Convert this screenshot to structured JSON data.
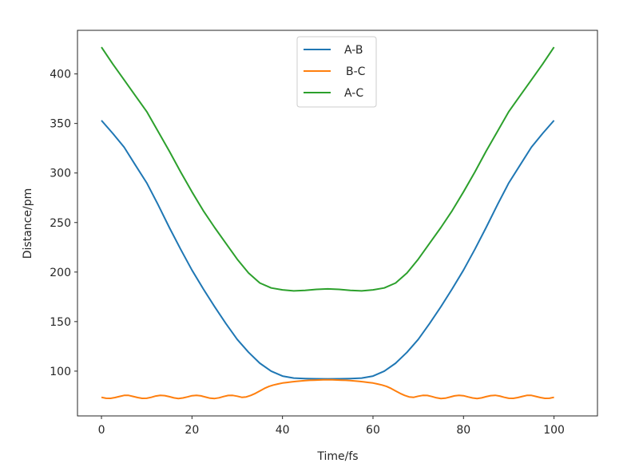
{
  "chart_data": {
    "type": "line",
    "title": "",
    "xlabel": "Time/fs",
    "ylabel": "Distance/pm",
    "xlim": [
      -5.3,
      109.6
    ],
    "ylim": [
      54.8,
      444
    ],
    "xticks": [
      0,
      20,
      40,
      60,
      80,
      100
    ],
    "yticks": [
      100,
      150,
      200,
      250,
      300,
      350,
      400
    ],
    "grid": false,
    "legend_position": "top-center",
    "series": [
      {
        "name": "A-B",
        "color": "#1f77b4",
        "x0": 0,
        "dx": 2.5,
        "values": [
          353,
          340,
          326,
          308,
          290,
          268,
          245,
          223,
          202,
          183,
          165,
          148,
          132,
          119,
          108,
          100,
          95,
          93,
          92.5,
          92.3,
          92.2,
          92.3,
          92.5,
          93,
          95,
          100,
          108,
          119,
          132,
          148,
          165,
          183,
          202,
          223,
          245,
          268,
          290,
          308,
          326,
          340,
          353
        ]
      },
      {
        "name": "B-C",
        "color": "#ff7f0e",
        "x0": 0,
        "dx": 1,
        "values": [
          73.6,
          72.6,
          72.5,
          73.3,
          74.5,
          75.5,
          75.5,
          74.5,
          73.3,
          72.5,
          72.6,
          73.6,
          74.9,
          75.6,
          75.3,
          74.2,
          73.0,
          72.4,
          72.9,
          74.0,
          75.2,
          75.6,
          75.0,
          73.8,
          72.7,
          72.4,
          73.1,
          74.4,
          75.4,
          75.5,
          74.7,
          73.6,
          74.0,
          75.5,
          77.5,
          80,
          82.5,
          84.5,
          86,
          87,
          88,
          88.6,
          89.1,
          89.6,
          90,
          90.4,
          90.7,
          90.9,
          91.1,
          91.2,
          91.2,
          91.2,
          91.1,
          90.9,
          90.7,
          90.4,
          90,
          89.6,
          89.1,
          88.6,
          88,
          87,
          86,
          84.5,
          82.5,
          80,
          77.5,
          75.5,
          74.0,
          73.6,
          74.7,
          75.5,
          75.4,
          74.4,
          73.1,
          72.4,
          72.7,
          73.8,
          75.0,
          75.6,
          75.2,
          74.0,
          72.9,
          72.4,
          73.0,
          74.2,
          75.3,
          75.6,
          74.9,
          73.6,
          72.6,
          72.5,
          73.3,
          74.5,
          75.5,
          75.5,
          74.5,
          73.3,
          72.5,
          72.6,
          73.6
        ]
      },
      {
        "name": "A-C",
        "color": "#2ca02c",
        "x0": 0,
        "dx": 2.5,
        "values": [
          427,
          410,
          394,
          378,
          362,
          342,
          322,
          301,
          281,
          262,
          245,
          229,
          213,
          199,
          189,
          184,
          182,
          181,
          181.5,
          182.5,
          183,
          182.5,
          181.5,
          181,
          182,
          184,
          189,
          199,
          213,
          229,
          245,
          262,
          281,
          301,
          322,
          342,
          362,
          378,
          394,
          410,
          427
        ]
      }
    ]
  }
}
